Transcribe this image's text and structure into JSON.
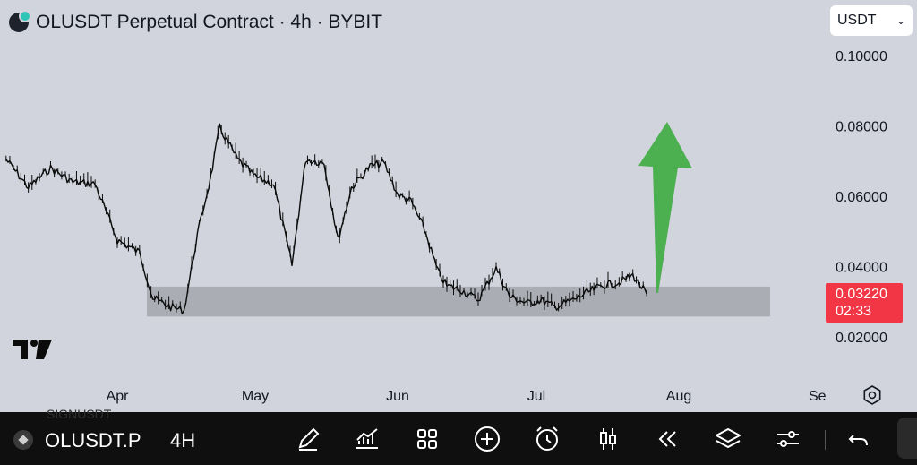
{
  "header": {
    "title": "OLUSDT Perpetual Contract · 4h · BYBIT",
    "currency_select": "USDT"
  },
  "price_axis": {
    "ticks": [
      "0.10000",
      "0.08000",
      "0.06000",
      "0.04000",
      "0.02000"
    ]
  },
  "time_axis": {
    "ticks": [
      "Apr",
      "May",
      "Jun",
      "Jul",
      "Aug",
      "Se"
    ]
  },
  "last_price": {
    "price": "0.03220",
    "countdown": "02:33",
    "color": "#f23645"
  },
  "chart_data": {
    "type": "line",
    "title": "OLUSDT Perpetual Contract · 4h · BYBIT",
    "xlabel": "",
    "ylabel": "",
    "y_range": [
      0.0148,
      0.1035
    ],
    "x_ticks": [
      "Apr",
      "May",
      "Jun",
      "Jul",
      "Aug",
      "Se"
    ],
    "series": [
      {
        "x": [
          "Mar 07",
          "Mar 12",
          "Mar 17",
          "Mar 22",
          "Mar 27",
          "Apr 01",
          "Apr 06",
          "Apr 09",
          "Apr 13",
          "Apr 16",
          "Apr 19",
          "Apr 22",
          "Apr 24",
          "Apr 28",
          "May 01",
          "May 05",
          "May 09",
          "May 12",
          "May 16",
          "May 19",
          "May 22",
          "May 26",
          "May 29",
          "Jun 01",
          "Jun 04",
          "Jun 07",
          "Jun 10",
          "Jun 12",
          "Jun 15",
          "Jun 19",
          "Jun 23",
          "Jun 26",
          "Jun 30",
          "Jul 02",
          "Jul 05",
          "Jul 09",
          "Jul 12",
          "Jul 15",
          "Jul 19",
          "Jul 22",
          "Jul 25"
        ],
        "values": [
          0.0705,
          0.0625,
          0.068,
          0.064,
          0.0635,
          0.0475,
          0.044,
          0.031,
          0.0285,
          0.0275,
          0.049,
          0.0655,
          0.0795,
          0.0705,
          0.0655,
          0.0635,
          0.0405,
          0.0705,
          0.0695,
          0.0475,
          0.0625,
          0.0685,
          0.0695,
          0.0605,
          0.0585,
          0.0505,
          0.0385,
          0.0345,
          0.0335,
          0.0305,
          0.0395,
          0.0315,
          0.0295,
          0.0305,
          0.0285,
          0.0305,
          0.0325,
          0.0345,
          0.0355,
          0.0375,
          0.0322
        ]
      }
    ],
    "support_zone": [
      0.0258,
      0.0343
    ],
    "annotation": "green upward arrow from last price",
    "grid": false,
    "legend": "none",
    "colors": {
      "line": "#0a0a0a",
      "zone": "#a3a6ad",
      "arrow": "#4caf50",
      "background": "#d1d4dc"
    }
  },
  "toolbar": {
    "symbol": "OLUSDT.P",
    "interval": "4H",
    "ghost_symbol": "SIGNUSDT",
    "icons": [
      "pencil-icon",
      "indicators-icon",
      "grid-icon",
      "plus-circle-icon",
      "alarm-icon",
      "candles-icon",
      "replay-icon",
      "layers-icon",
      "sliders-icon",
      "undo-icon"
    ]
  }
}
